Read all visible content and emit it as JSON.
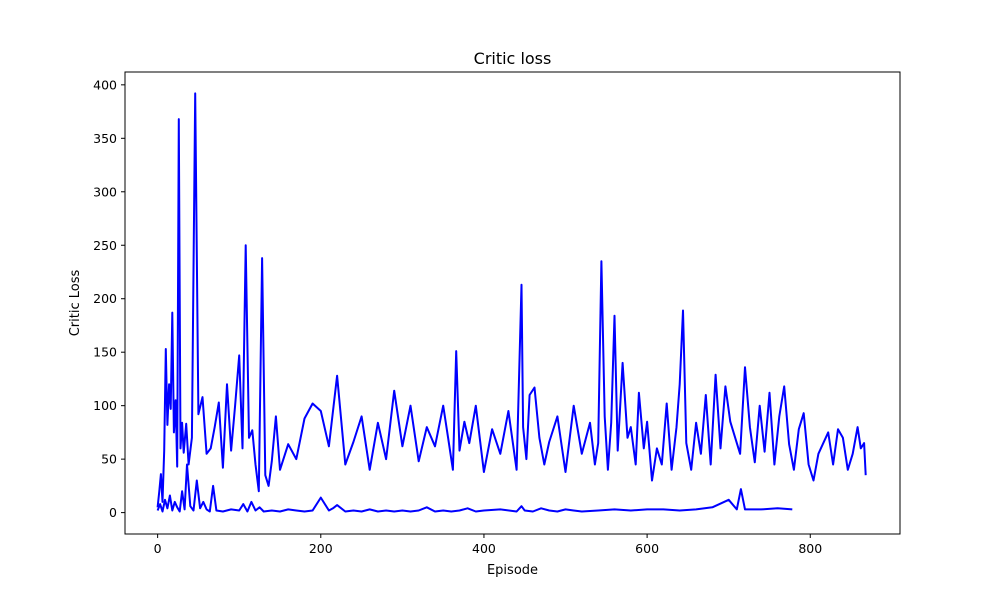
{
  "chart_data": {
    "type": "line",
    "title": "Critic loss",
    "xlabel": "Episode",
    "ylabel": "Critic Loss",
    "xlim": [
      -40,
      910
    ],
    "ylim": [
      -20,
      412
    ],
    "xticks": [
      0,
      200,
      400,
      600,
      800
    ],
    "yticks": [
      0,
      50,
      100,
      150,
      200,
      250,
      300,
      350,
      400
    ],
    "xtick_labels": [
      "0",
      "200",
      "400",
      "600",
      "800"
    ],
    "ytick_labels": [
      "0",
      "50",
      "100",
      "150",
      "200",
      "250",
      "300",
      "350",
      "400"
    ],
    "grid": false,
    "legend": "none",
    "line_color": "#0000ff",
    "series": [
      {
        "x": [
          0,
          2,
          4,
          6,
          8,
          10,
          12,
          14,
          16,
          18,
          20,
          22,
          24,
          26,
          28,
          30,
          32,
          35,
          38,
          42,
          46,
          50,
          55,
          60,
          65,
          70,
          75,
          80,
          85,
          90,
          95,
          100,
          104,
          108,
          112,
          116,
          120,
          124,
          128,
          132,
          136,
          140,
          145,
          150,
          160,
          170,
          180,
          190,
          200,
          210,
          220,
          230,
          240,
          250,
          260,
          270,
          280,
          290,
          300,
          310,
          320,
          330,
          340,
          350,
          356,
          362,
          366,
          370,
          376,
          382,
          390,
          400,
          410,
          420,
          430,
          440,
          446,
          448,
          452,
          456,
          462,
          468,
          474,
          480,
          490,
          500,
          510,
          520,
          530,
          536,
          540,
          544,
          548,
          552,
          556,
          560,
          564,
          570,
          576,
          580,
          586,
          590,
          596,
          600,
          606,
          612,
          618,
          624,
          630,
          636,
          640,
          644,
          648,
          654,
          660,
          666,
          672,
          678,
          684,
          690,
          696,
          702,
          708,
          714,
          720,
          726,
          732,
          738,
          744,
          750,
          756,
          762,
          768,
          774,
          780,
          786,
          792,
          798,
          804,
          810,
          816,
          822,
          828,
          834,
          840,
          846,
          852,
          858,
          862,
          866,
          868
        ],
        "y": [
          5,
          20,
          36,
          10,
          58,
          153,
          82,
          120,
          97,
          187,
          75,
          105,
          43,
          368,
          60,
          84,
          56,
          83,
          45,
          70,
          392,
          92,
          108,
          55,
          60,
          80,
          103,
          42,
          120,
          58,
          100,
          147,
          60,
          250,
          70,
          77,
          45,
          20,
          238,
          35,
          25,
          48,
          90,
          40,
          64,
          50,
          88,
          102,
          95,
          62,
          128,
          45,
          66,
          90,
          40,
          84,
          50,
          114,
          62,
          100,
          48,
          80,
          62,
          100,
          70,
          40,
          151,
          58,
          85,
          65,
          100,
          38,
          78,
          55,
          95,
          40,
          213,
          80,
          50,
          110,
          117,
          70,
          45,
          66,
          90,
          38,
          100,
          55,
          84,
          45,
          65,
          235,
          90,
          40,
          84,
          184,
          58,
          140,
          70,
          80,
          45,
          112,
          60,
          85,
          30,
          60,
          45,
          102,
          40,
          80,
          120,
          189,
          65,
          40,
          84,
          55,
          110,
          45,
          129,
          60,
          118,
          85,
          70,
          55,
          136,
          80,
          47,
          100,
          57,
          112,
          45,
          90,
          118,
          64,
          40,
          78,
          93,
          45,
          30,
          55,
          65,
          75,
          45,
          78,
          70,
          40,
          55,
          80,
          60,
          65,
          35
        ]
      },
      {
        "x": [
          0,
          3,
          6,
          9,
          12,
          15,
          18,
          21,
          24,
          27,
          30,
          33,
          36,
          40,
          44,
          48,
          52,
          56,
          60,
          64,
          68,
          72,
          80,
          90,
          100,
          105,
          110,
          115,
          120,
          125,
          130,
          140,
          150,
          160,
          170,
          180,
          190,
          200,
          210,
          215,
          220,
          230,
          240,
          250,
          260,
          270,
          280,
          290,
          300,
          310,
          320,
          330,
          340,
          350,
          360,
          370,
          380,
          390,
          400,
          420,
          440,
          446,
          450,
          460,
          470,
          480,
          490,
          500,
          510,
          520,
          540,
          560,
          580,
          600,
          620,
          640,
          660,
          680,
          700,
          710,
          715,
          720,
          740,
          760,
          778
        ],
        "y": [
          2,
          8,
          1,
          12,
          4,
          16,
          2,
          10,
          5,
          1,
          20,
          3,
          45,
          6,
          2,
          30,
          4,
          10,
          3,
          1,
          25,
          2,
          1,
          3,
          2,
          8,
          1,
          10,
          2,
          5,
          1,
          2,
          1,
          3,
          2,
          1,
          2,
          14,
          2,
          4,
          7,
          1,
          2,
          1,
          3,
          1,
          2,
          1,
          2,
          1,
          2,
          5,
          1,
          2,
          1,
          2,
          4,
          1,
          2,
          3,
          1,
          6,
          2,
          1,
          4,
          2,
          1,
          3,
          2,
          1,
          2,
          3,
          2,
          3,
          3,
          2,
          3,
          5,
          12,
          3,
          22,
          3,
          3,
          4,
          3
        ]
      }
    ]
  }
}
